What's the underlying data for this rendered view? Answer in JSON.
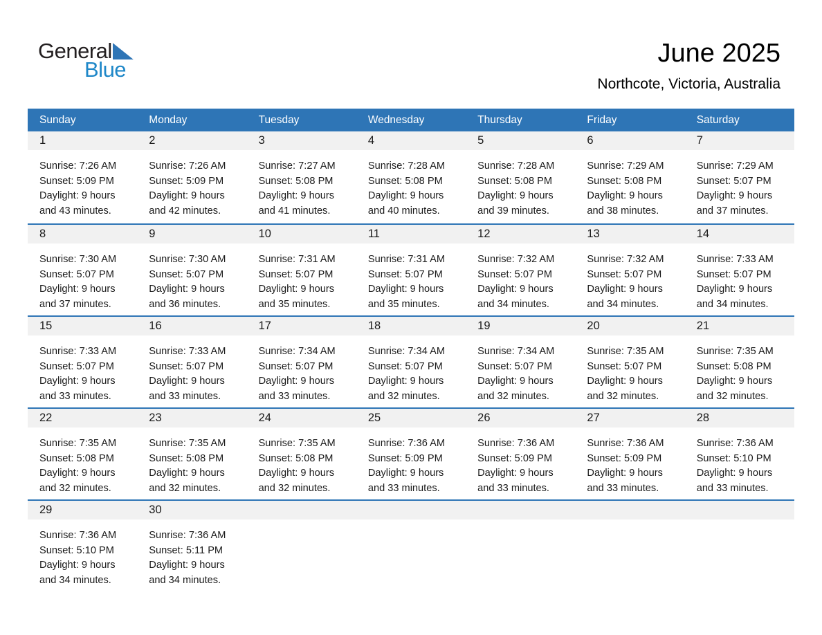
{
  "logo": {
    "general": "General",
    "blue": "Blue"
  },
  "header": {
    "title": "June 2025",
    "subtitle": "Northcote, Victoria, Australia"
  },
  "colors": {
    "header_bg": "#2E75B6",
    "week_separator": "#2E75B6",
    "day_band_bg": "#F1F1F1",
    "logo_blue": "#1E87C8",
    "logo_black": "#231F20"
  },
  "calendar": {
    "day_headers": [
      "Sunday",
      "Monday",
      "Tuesday",
      "Wednesday",
      "Thursday",
      "Friday",
      "Saturday"
    ],
    "weeks": [
      [
        {
          "day": "1",
          "sunrise": "Sunrise: 7:26 AM",
          "sunset": "Sunset: 5:09 PM",
          "daylight_line1": "Daylight: 9 hours",
          "daylight_line2": "and 43 minutes."
        },
        {
          "day": "2",
          "sunrise": "Sunrise: 7:26 AM",
          "sunset": "Sunset: 5:09 PM",
          "daylight_line1": "Daylight: 9 hours",
          "daylight_line2": "and 42 minutes."
        },
        {
          "day": "3",
          "sunrise": "Sunrise: 7:27 AM",
          "sunset": "Sunset: 5:08 PM",
          "daylight_line1": "Daylight: 9 hours",
          "daylight_line2": "and 41 minutes."
        },
        {
          "day": "4",
          "sunrise": "Sunrise: 7:28 AM",
          "sunset": "Sunset: 5:08 PM",
          "daylight_line1": "Daylight: 9 hours",
          "daylight_line2": "and 40 minutes."
        },
        {
          "day": "5",
          "sunrise": "Sunrise: 7:28 AM",
          "sunset": "Sunset: 5:08 PM",
          "daylight_line1": "Daylight: 9 hours",
          "daylight_line2": "and 39 minutes."
        },
        {
          "day": "6",
          "sunrise": "Sunrise: 7:29 AM",
          "sunset": "Sunset: 5:08 PM",
          "daylight_line1": "Daylight: 9 hours",
          "daylight_line2": "and 38 minutes."
        },
        {
          "day": "7",
          "sunrise": "Sunrise: 7:29 AM",
          "sunset": "Sunset: 5:07 PM",
          "daylight_line1": "Daylight: 9 hours",
          "daylight_line2": "and 37 minutes."
        }
      ],
      [
        {
          "day": "8",
          "sunrise": "Sunrise: 7:30 AM",
          "sunset": "Sunset: 5:07 PM",
          "daylight_line1": "Daylight: 9 hours",
          "daylight_line2": "and 37 minutes."
        },
        {
          "day": "9",
          "sunrise": "Sunrise: 7:30 AM",
          "sunset": "Sunset: 5:07 PM",
          "daylight_line1": "Daylight: 9 hours",
          "daylight_line2": "and 36 minutes."
        },
        {
          "day": "10",
          "sunrise": "Sunrise: 7:31 AM",
          "sunset": "Sunset: 5:07 PM",
          "daylight_line1": "Daylight: 9 hours",
          "daylight_line2": "and 35 minutes."
        },
        {
          "day": "11",
          "sunrise": "Sunrise: 7:31 AM",
          "sunset": "Sunset: 5:07 PM",
          "daylight_line1": "Daylight: 9 hours",
          "daylight_line2": "and 35 minutes."
        },
        {
          "day": "12",
          "sunrise": "Sunrise: 7:32 AM",
          "sunset": "Sunset: 5:07 PM",
          "daylight_line1": "Daylight: 9 hours",
          "daylight_line2": "and 34 minutes."
        },
        {
          "day": "13",
          "sunrise": "Sunrise: 7:32 AM",
          "sunset": "Sunset: 5:07 PM",
          "daylight_line1": "Daylight: 9 hours",
          "daylight_line2": "and 34 minutes."
        },
        {
          "day": "14",
          "sunrise": "Sunrise: 7:33 AM",
          "sunset": "Sunset: 5:07 PM",
          "daylight_line1": "Daylight: 9 hours",
          "daylight_line2": "and 34 minutes."
        }
      ],
      [
        {
          "day": "15",
          "sunrise": "Sunrise: 7:33 AM",
          "sunset": "Sunset: 5:07 PM",
          "daylight_line1": "Daylight: 9 hours",
          "daylight_line2": "and 33 minutes."
        },
        {
          "day": "16",
          "sunrise": "Sunrise: 7:33 AM",
          "sunset": "Sunset: 5:07 PM",
          "daylight_line1": "Daylight: 9 hours",
          "daylight_line2": "and 33 minutes."
        },
        {
          "day": "17",
          "sunrise": "Sunrise: 7:34 AM",
          "sunset": "Sunset: 5:07 PM",
          "daylight_line1": "Daylight: 9 hours",
          "daylight_line2": "and 33 minutes."
        },
        {
          "day": "18",
          "sunrise": "Sunrise: 7:34 AM",
          "sunset": "Sunset: 5:07 PM",
          "daylight_line1": "Daylight: 9 hours",
          "daylight_line2": "and 32 minutes."
        },
        {
          "day": "19",
          "sunrise": "Sunrise: 7:34 AM",
          "sunset": "Sunset: 5:07 PM",
          "daylight_line1": "Daylight: 9 hours",
          "daylight_line2": "and 32 minutes."
        },
        {
          "day": "20",
          "sunrise": "Sunrise: 7:35 AM",
          "sunset": "Sunset: 5:07 PM",
          "daylight_line1": "Daylight: 9 hours",
          "daylight_line2": "and 32 minutes."
        },
        {
          "day": "21",
          "sunrise": "Sunrise: 7:35 AM",
          "sunset": "Sunset: 5:08 PM",
          "daylight_line1": "Daylight: 9 hours",
          "daylight_line2": "and 32 minutes."
        }
      ],
      [
        {
          "day": "22",
          "sunrise": "Sunrise: 7:35 AM",
          "sunset": "Sunset: 5:08 PM",
          "daylight_line1": "Daylight: 9 hours",
          "daylight_line2": "and 32 minutes."
        },
        {
          "day": "23",
          "sunrise": "Sunrise: 7:35 AM",
          "sunset": "Sunset: 5:08 PM",
          "daylight_line1": "Daylight: 9 hours",
          "daylight_line2": "and 32 minutes."
        },
        {
          "day": "24",
          "sunrise": "Sunrise: 7:35 AM",
          "sunset": "Sunset: 5:08 PM",
          "daylight_line1": "Daylight: 9 hours",
          "daylight_line2": "and 32 minutes."
        },
        {
          "day": "25",
          "sunrise": "Sunrise: 7:36 AM",
          "sunset": "Sunset: 5:09 PM",
          "daylight_line1": "Daylight: 9 hours",
          "daylight_line2": "and 33 minutes."
        },
        {
          "day": "26",
          "sunrise": "Sunrise: 7:36 AM",
          "sunset": "Sunset: 5:09 PM",
          "daylight_line1": "Daylight: 9 hours",
          "daylight_line2": "and 33 minutes."
        },
        {
          "day": "27",
          "sunrise": "Sunrise: 7:36 AM",
          "sunset": "Sunset: 5:09 PM",
          "daylight_line1": "Daylight: 9 hours",
          "daylight_line2": "and 33 minutes."
        },
        {
          "day": "28",
          "sunrise": "Sunrise: 7:36 AM",
          "sunset": "Sunset: 5:10 PM",
          "daylight_line1": "Daylight: 9 hours",
          "daylight_line2": "and 33 minutes."
        }
      ],
      [
        {
          "day": "29",
          "sunrise": "Sunrise: 7:36 AM",
          "sunset": "Sunset: 5:10 PM",
          "daylight_line1": "Daylight: 9 hours",
          "daylight_line2": "and 34 minutes."
        },
        {
          "day": "30",
          "sunrise": "Sunrise: 7:36 AM",
          "sunset": "Sunset: 5:11 PM",
          "daylight_line1": "Daylight: 9 hours",
          "daylight_line2": "and 34 minutes."
        },
        null,
        null,
        null,
        null,
        null
      ]
    ]
  }
}
